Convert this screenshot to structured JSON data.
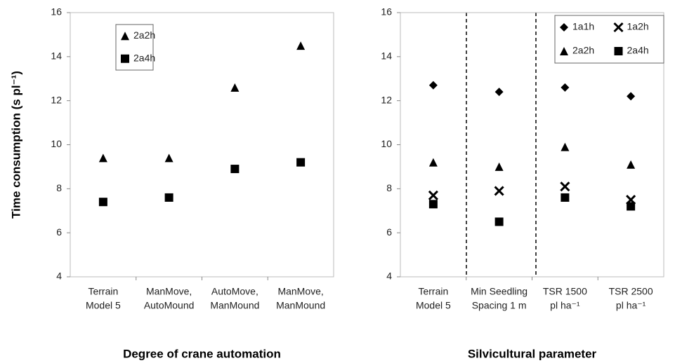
{
  "chart_data": [
    {
      "type": "scatter",
      "ylabel": "Time consumption (s pl⁻¹)",
      "xlabel": "Degree of crane automation",
      "categories": [
        [
          "Terrain",
          "Model 5"
        ],
        [
          "ManMove,",
          "AutoMound"
        ],
        [
          "AutoMove,",
          "ManMound"
        ],
        [
          "ManMove,",
          "ManMound"
        ]
      ],
      "ylim": [
        4,
        16
      ],
      "yticks": [
        4,
        6,
        8,
        10,
        12,
        14,
        16
      ],
      "series": [
        {
          "name": "2a2h",
          "color": "#000000",
          "marker": "triangle",
          "values": [
            9.4,
            9.4,
            12.6,
            14.5
          ]
        },
        {
          "name": "2a4h",
          "color": "#000000",
          "marker": "square",
          "values": [
            7.4,
            7.6,
            8.9,
            9.2
          ]
        }
      ]
    },
    {
      "type": "scatter",
      "xlabel": "Silvicultural parameter",
      "categories": [
        [
          "Terrain",
          "Model 5"
        ],
        [
          "Min Seedling",
          "Spacing 1 m"
        ],
        [
          "TSR 1500",
          "pl ha⁻¹"
        ],
        [
          "TSR 2500",
          "pl ha⁻¹"
        ]
      ],
      "ylim": [
        4,
        16
      ],
      "yticks": [
        4,
        6,
        8,
        10,
        12,
        14,
        16
      ],
      "series": [
        {
          "name": "1a1h",
          "color": "#000000",
          "marker": "diamond",
          "values": [
            12.7,
            12.4,
            12.6,
            12.2
          ]
        },
        {
          "name": "1a2h",
          "color": "#000000",
          "marker": "x",
          "values": [
            7.7,
            7.9,
            8.1,
            7.5
          ]
        },
        {
          "name": "2a2h",
          "color": "#000000",
          "marker": "triangle",
          "values": [
            9.2,
            9.0,
            9.9,
            9.1
          ]
        },
        {
          "name": "2a4h",
          "color": "#000000",
          "marker": "square",
          "values": [
            7.3,
            6.5,
            7.6,
            7.2
          ]
        }
      ]
    }
  ]
}
